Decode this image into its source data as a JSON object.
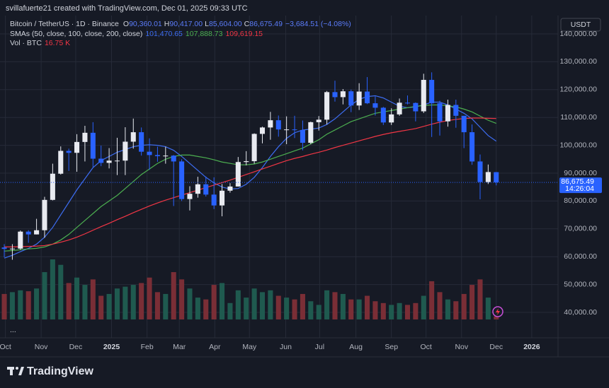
{
  "header": {
    "watermark": "svillafuerte21 created with TradingView.com, Dec 01, 2025 09:33 UTC"
  },
  "chart_data": {
    "type": "candlestick",
    "legend": {
      "symbol": "Bitcoin / TetherUS · 1D · Binance",
      "ohlc": [
        {
          "key": "O",
          "value": "90,360.01"
        },
        {
          "key": "H",
          "value": "90,417.00"
        },
        {
          "key": "L",
          "value": "85,604.00"
        },
        {
          "key": "C",
          "value": "86,675.49"
        }
      ],
      "change": "−3,684.51 (−4.08%)",
      "sma_title": "SMAs (50, close, 100, close, 200, close)"
    },
    "currency": "USDT",
    "up_color": "#e8eaf0",
    "down_color": "#2962ff",
    "open": [
      63300,
      62800,
      62900,
      69000,
      68000,
      69500,
      80400,
      89800,
      98000,
      97300,
      101200,
      104500,
      95200,
      93700,
      94500,
      94500,
      101300,
      104700,
      97700,
      96500,
      96100,
      96300,
      94200,
      80700,
      82600,
      86000,
      82300,
      78400,
      83700,
      85200,
      94000,
      94300,
      104100,
      106400,
      109000,
      105700,
      105700,
      105500,
      100900,
      108300,
      109200,
      119100,
      117300,
      119400,
      114300,
      119300,
      115100,
      113500,
      108200,
      111100,
      115300,
      115200,
      112200,
      123500,
      115100,
      108600,
      114500,
      110600,
      104700,
      94200,
      86800,
      90360.01
    ],
    "high": [
      64500,
      64500,
      69400,
      69500,
      73600,
      81500,
      93400,
      99600,
      98800,
      104000,
      107000,
      108300,
      99900,
      99000,
      102700,
      106500,
      109600,
      106400,
      102500,
      99500,
      99500,
      96500,
      95000,
      85300,
      88700,
      88800,
      88500,
      86100,
      86400,
      95800,
      97900,
      104300,
      106700,
      112000,
      110700,
      110400,
      110600,
      108900,
      108500,
      110500,
      119500,
      123200,
      120200,
      120000,
      122300,
      124500,
      117600,
      113800,
      113300,
      116800,
      117900,
      115400,
      125700,
      126200,
      116000,
      116400,
      116400,
      110600,
      107500,
      96700,
      93100,
      90417
    ],
    "low": [
      59800,
      58900,
      62500,
      65000,
      68000,
      66800,
      80200,
      89500,
      90800,
      90500,
      94200,
      92200,
      92500,
      91700,
      89300,
      89300,
      98800,
      96300,
      91200,
      94100,
      93400,
      78200,
      80000,
      76600,
      81200,
      81600,
      77100,
      74500,
      83000,
      85200,
      92800,
      93400,
      100700,
      102000,
      103100,
      100400,
      102600,
      98200,
      100400,
      105300,
      107500,
      115700,
      114700,
      111900,
      112700,
      114800,
      110700,
      107300,
      107300,
      110600,
      114700,
      108600,
      111600,
      103000,
      103500,
      106700,
      106300,
      99000,
      93000,
      80600,
      86100,
      85604
    ],
    "close": [
      62800,
      62900,
      69000,
      68000,
      69500,
      80400,
      89800,
      98000,
      97300,
      101200,
      104500,
      95200,
      93700,
      94500,
      94500,
      101300,
      104700,
      97700,
      96500,
      96100,
      96300,
      94200,
      80700,
      82600,
      86000,
      82300,
      78400,
      83700,
      85200,
      94000,
      94300,
      104100,
      106400,
      109000,
      105700,
      105700,
      105500,
      100900,
      108300,
      109200,
      119100,
      117300,
      119400,
      114300,
      119300,
      115100,
      113500,
      108200,
      111100,
      115300,
      115200,
      112200,
      123500,
      115100,
      108600,
      114500,
      110600,
      104700,
      94200,
      86800,
      90400,
      86675.49
    ],
    "last_price_label": "86,675.49",
    "countdown": "14:26:04",
    "sma": [
      {
        "color": "#3d6df2",
        "label": "101,470.65",
        "values": [
          59500,
          60500,
          61800,
          63000,
          64500,
          67000,
          70500,
          75000,
          79500,
          84000,
          88000,
          92000,
          94500,
          96000,
          97500,
          98500,
          99500,
          100000,
          100200,
          100000,
          99500,
          98200,
          96000,
          93500,
          91000,
          88500,
          86500,
          85000,
          84300,
          84500,
          86000,
          88500,
          92000,
          96000,
          99500,
          102500,
          104500,
          105500,
          105800,
          106200,
          107500,
          109500,
          112000,
          114500,
          116500,
          117500,
          117800,
          117000,
          115500,
          114000,
          113500,
          113800,
          114500,
          115500,
          115500,
          114500,
          113000,
          111500,
          109500,
          106500,
          103500,
          101470.65
        ]
      },
      {
        "color": "#4caf50",
        "label": "107,888.73",
        "values": [
          62000,
          62200,
          62500,
          62800,
          63000,
          63500,
          64500,
          66000,
          68000,
          70500,
          73000,
          75500,
          78000,
          80000,
          82000,
          84500,
          87000,
          89500,
          91500,
          93500,
          95000,
          96000,
          96500,
          96500,
          96000,
          95500,
          94800,
          94000,
          93500,
          93000,
          93000,
          93300,
          94000,
          95000,
          96000,
          97000,
          98000,
          99000,
          100500,
          102000,
          104000,
          105500,
          107000,
          108500,
          109500,
          110500,
          111500,
          112000,
          112500,
          113000,
          113500,
          114000,
          114300,
          114500,
          114500,
          114200,
          113800,
          113000,
          112000,
          110500,
          109000,
          107888.73
        ]
      },
      {
        "color": "#f23645",
        "label": "109,619.15",
        "values": [
          63500,
          63500,
          63600,
          63700,
          63800,
          64000,
          64500,
          65200,
          66000,
          67000,
          68200,
          69500,
          70800,
          72000,
          73300,
          74500,
          75800,
          77000,
          78200,
          79300,
          80300,
          81200,
          82100,
          83000,
          83900,
          84800,
          85700,
          86600,
          87500,
          88500,
          89500,
          90500,
          91500,
          92500,
          93500,
          94500,
          95300,
          96000,
          96800,
          97500,
          98300,
          99200,
          100000,
          100800,
          101600,
          102400,
          103200,
          103900,
          104500,
          105000,
          105500,
          106000,
          106800,
          107600,
          108300,
          108900,
          109300,
          109600,
          109800,
          109800,
          109700,
          109619.15
        ]
      }
    ],
    "volume": {
      "title": "Vol · BTC",
      "label": "16.75 K",
      "up_color": "#1f5a4f",
      "down_color": "#7a2e36",
      "values": [
        140,
        150,
        160,
        155,
        170,
        260,
        330,
        300,
        200,
        230,
        190,
        220,
        130,
        140,
        170,
        180,
        190,
        200,
        230,
        150,
        140,
        260,
        220,
        170,
        120,
        110,
        190,
        200,
        90,
        160,
        120,
        170,
        150,
        160,
        130,
        120,
        110,
        140,
        100,
        80,
        160,
        150,
        140,
        110,
        110,
        130,
        100,
        90,
        80,
        90,
        80,
        90,
        130,
        210,
        150,
        110,
        100,
        140,
        190,
        220,
        120,
        16.75
      ]
    },
    "ylim": [
      30860,
      146600
    ],
    "yticks": [
      {
        "value": 40000,
        "label": "40,000.00"
      },
      {
        "value": 50000,
        "label": "50,000.00"
      },
      {
        "value": 60000,
        "label": "60,000.00"
      },
      {
        "value": 70000,
        "label": "70,000.00"
      },
      {
        "value": 80000,
        "label": "80,000.00"
      },
      {
        "value": 90000,
        "label": "90,000.00"
      },
      {
        "value": 100000,
        "label": "100,000.00"
      },
      {
        "value": 110000,
        "label": "110,000.00"
      },
      {
        "value": 120000,
        "label": "120,000.00"
      },
      {
        "value": 130000,
        "label": "130,000.00"
      },
      {
        "value": 140000,
        "label": "140,000.00"
      }
    ],
    "xlim": [
      -0.53,
      68.66
    ],
    "xticks": [
      {
        "value": 0.14,
        "label": "Oct"
      },
      {
        "value": 4.57,
        "label": "Nov"
      },
      {
        "value": 8.86,
        "label": "Dec"
      },
      {
        "value": 13.3,
        "label": "2025"
      },
      {
        "value": 17.7,
        "label": "Feb"
      },
      {
        "value": 21.7,
        "label": "Mar"
      },
      {
        "value": 26.1,
        "label": "Apr"
      },
      {
        "value": 30.4,
        "label": "May"
      },
      {
        "value": 34.9,
        "label": "Jun"
      },
      {
        "value": 39.1,
        "label": "Jul"
      },
      {
        "value": 43.6,
        "label": "Aug"
      },
      {
        "value": 48.0,
        "label": "Sep"
      },
      {
        "value": 52.3,
        "label": "Oct"
      },
      {
        "value": 56.7,
        "label": "Nov"
      },
      {
        "value": 61.0,
        "label": "Dec"
      },
      {
        "value": 65.4,
        "label": "2026"
      }
    ],
    "grid": true
  },
  "footer": {
    "brand": "TradingView",
    "more": "..."
  }
}
